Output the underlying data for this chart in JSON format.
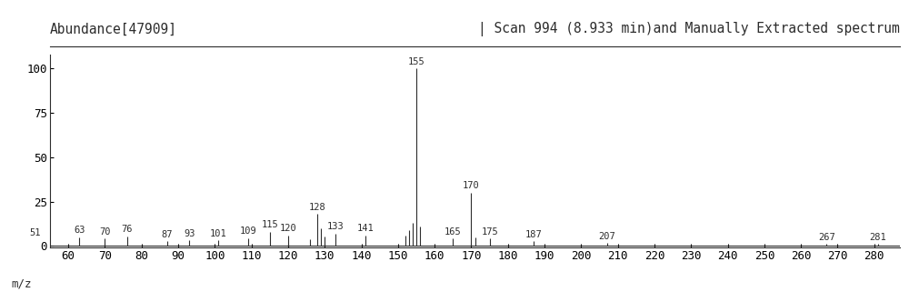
{
  "title_left": "Abundance[47909]",
  "title_right": "| Scan 994 (8.933 min)and Manually Extracted spectrum",
  "xlabel": "m/z",
  "xlim": [
    55,
    287
  ],
  "ylim": [
    -1,
    108
  ],
  "xticks": [
    60,
    70,
    80,
    90,
    100,
    110,
    120,
    130,
    140,
    150,
    160,
    170,
    180,
    190,
    200,
    210,
    220,
    230,
    240,
    250,
    260,
    270,
    280
  ],
  "yticks": [
    0,
    25,
    50,
    75,
    100
  ],
  "peaks": [
    {
      "mz": 51,
      "intensity": 3.5,
      "label": "51",
      "show_label": true,
      "label_side": "center"
    },
    {
      "mz": 63,
      "intensity": 5.0,
      "label": "63",
      "show_label": true,
      "label_side": "center"
    },
    {
      "mz": 70,
      "intensity": 4.0,
      "label": "70",
      "show_label": true,
      "label_side": "center"
    },
    {
      "mz": 76,
      "intensity": 5.5,
      "label": "76",
      "show_label": true,
      "label_side": "center"
    },
    {
      "mz": 87,
      "intensity": 2.5,
      "label": "87",
      "show_label": true,
      "label_side": "center"
    },
    {
      "mz": 93,
      "intensity": 3.0,
      "label": "93",
      "show_label": true,
      "label_side": "center"
    },
    {
      "mz": 101,
      "intensity": 3.0,
      "label": "101",
      "show_label": true,
      "label_side": "center"
    },
    {
      "mz": 109,
      "intensity": 4.5,
      "label": "109",
      "show_label": true,
      "label_side": "center"
    },
    {
      "mz": 115,
      "intensity": 8.0,
      "label": "115",
      "show_label": true,
      "label_side": "center"
    },
    {
      "mz": 120,
      "intensity": 6.0,
      "label": "120",
      "show_label": true,
      "label_side": "center"
    },
    {
      "mz": 126,
      "intensity": 3.5,
      "label": "",
      "show_label": false,
      "label_side": "center"
    },
    {
      "mz": 128,
      "intensity": 18.0,
      "label": "128",
      "show_label": true,
      "label_side": "center"
    },
    {
      "mz": 129,
      "intensity": 10.0,
      "label": "",
      "show_label": false,
      "label_side": "center"
    },
    {
      "mz": 130,
      "intensity": 5.5,
      "label": "",
      "show_label": false,
      "label_side": "center"
    },
    {
      "mz": 133,
      "intensity": 7.0,
      "label": "133",
      "show_label": true,
      "label_side": "center"
    },
    {
      "mz": 141,
      "intensity": 6.0,
      "label": "141",
      "show_label": true,
      "label_side": "center"
    },
    {
      "mz": 152,
      "intensity": 6.0,
      "label": "",
      "show_label": false,
      "label_side": "center"
    },
    {
      "mz": 153,
      "intensity": 9.0,
      "label": "",
      "show_label": false,
      "label_side": "center"
    },
    {
      "mz": 154,
      "intensity": 13.0,
      "label": "",
      "show_label": false,
      "label_side": "center"
    },
    {
      "mz": 155,
      "intensity": 100.0,
      "label": "155",
      "show_label": true,
      "label_side": "center"
    },
    {
      "mz": 156,
      "intensity": 11.0,
      "label": "",
      "show_label": false,
      "label_side": "center"
    },
    {
      "mz": 165,
      "intensity": 4.0,
      "label": "165",
      "show_label": true,
      "label_side": "center"
    },
    {
      "mz": 170,
      "intensity": 30.0,
      "label": "170",
      "show_label": true,
      "label_side": "center"
    },
    {
      "mz": 171,
      "intensity": 5.0,
      "label": "",
      "show_label": false,
      "label_side": "center"
    },
    {
      "mz": 175,
      "intensity": 4.0,
      "label": "175",
      "show_label": true,
      "label_side": "center"
    },
    {
      "mz": 187,
      "intensity": 2.5,
      "label": "187",
      "show_label": true,
      "label_side": "center"
    },
    {
      "mz": 207,
      "intensity": 1.5,
      "label": "207",
      "show_label": true,
      "label_side": "center"
    },
    {
      "mz": 267,
      "intensity": 1.2,
      "label": "267",
      "show_label": true,
      "label_side": "center"
    },
    {
      "mz": 281,
      "intensity": 1.0,
      "label": "281",
      "show_label": true,
      "label_side": "center"
    }
  ],
  "bar_color": "#2d2d2d",
  "bg_color": "#ffffff",
  "font_color": "#2d2d2d",
  "title_fontsize": 10.5,
  "label_fontsize": 7.5,
  "tick_fontsize": 9,
  "axis_label_fontsize": 9
}
